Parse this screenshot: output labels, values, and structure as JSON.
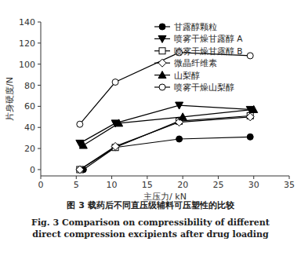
{
  "chart_data": {
    "type": "line",
    "title": "图 3   载药后不同直压级辅料可压塑性的比较",
    "subtitle": "Fig. 3   Comparison on compressibility of different direct compression excipients after drug loading",
    "x_label": "主压力/ kN",
    "y_label": "片身硬度/N",
    "xlim": [
      0,
      35
    ],
    "xticks": [
      0,
      5,
      10,
      15,
      20,
      25,
      30,
      35
    ],
    "ylim": [
      -6,
      140
    ],
    "yticks": [
      0,
      20,
      40,
      60,
      80,
      100,
      120,
      140
    ],
    "grid": false,
    "legend": "upper right",
    "series": [
      {
        "name": "甘露醇颗粒",
        "color": "#000000",
        "marker": "circle",
        "x": [
          6,
          10.5,
          19.5,
          29.5
        ],
        "values": [
          0,
          21,
          29,
          31
        ]
      },
      {
        "name": "喷雾干燥甘露醇 A",
        "color": "#000000",
        "marker": "triangle-down",
        "x": [
          5.5,
          10.5,
          19.5,
          29.5
        ],
        "values": [
          25,
          44,
          61,
          57
        ]
      },
      {
        "name": "喷雾干燥甘露醇 B",
        "color": "#000000",
        "marker": "square-open",
        "x": [
          5.5,
          10.5,
          19.5,
          29.5
        ],
        "values": [
          0,
          21,
          46,
          51
        ]
      },
      {
        "name": "微晶纤维素",
        "color": "#000000",
        "marker": "diamond-open",
        "x": [
          5.5,
          10.5,
          19.5,
          29.5
        ],
        "values": [
          0,
          22,
          45,
          50
        ]
      },
      {
        "name": "山梨醇",
        "color": "#000000",
        "marker": "triangle",
        "x": [
          6,
          11,
          20,
          30
        ],
        "values": [
          23,
          44,
          50,
          57
        ]
      },
      {
        "name": "喷雾干燥山梨醇",
        "color": "#000000",
        "marker": "circle-open",
        "x": [
          5.5,
          10.5,
          19.5,
          29.5
        ],
        "values": [
          43,
          83,
          111,
          108
        ]
      }
    ]
  }
}
